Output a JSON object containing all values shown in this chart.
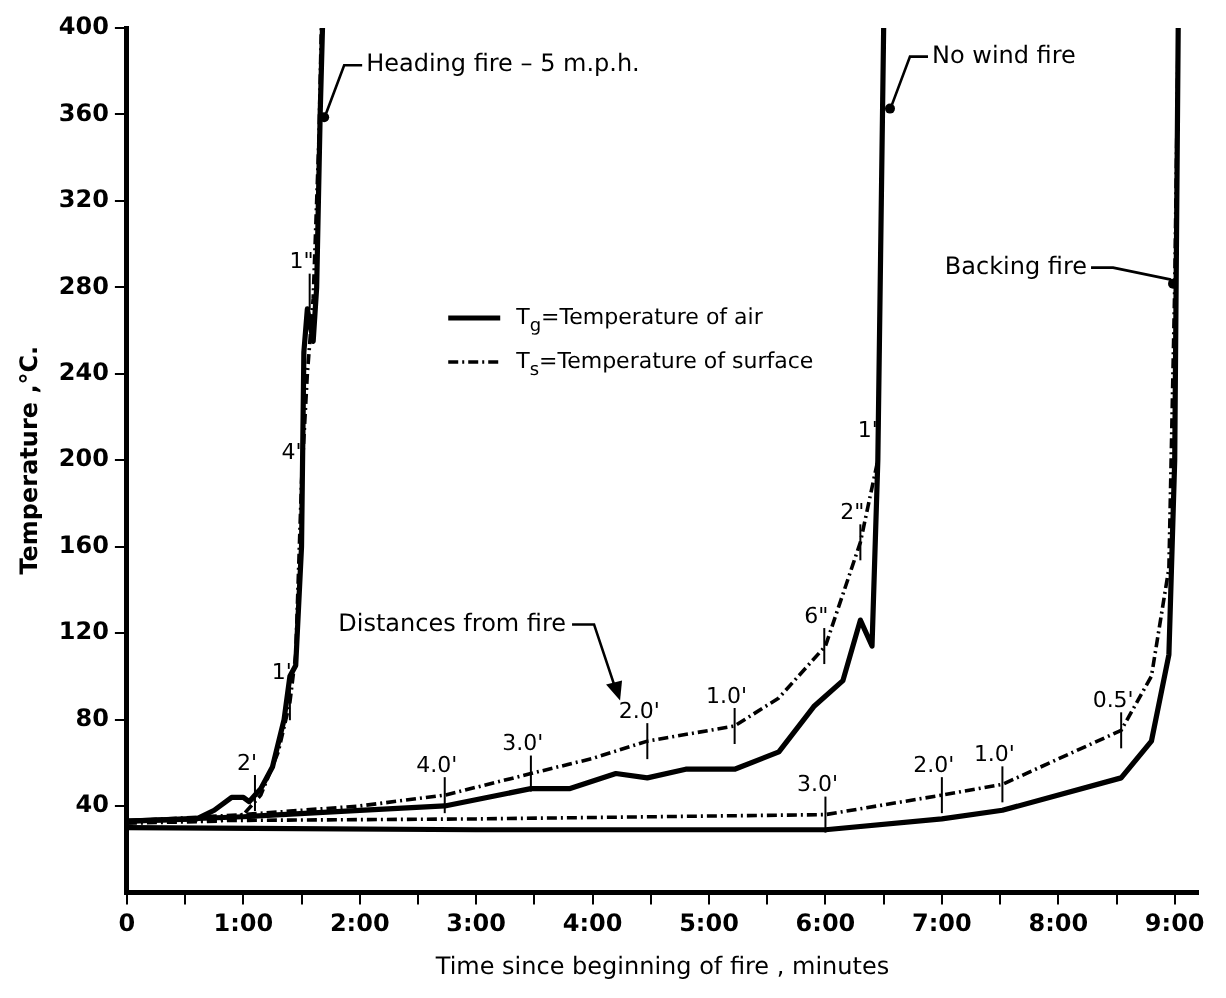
{
  "chart_data": {
    "type": "line",
    "xlabel": "Time since beginning of fire , minutes",
    "ylabel": "Temperature ,°C.",
    "xlim": [
      0,
      9.2
    ],
    "ylim": [
      0,
      400
    ],
    "xticks": [
      {
        "value": 0,
        "label": "0"
      },
      {
        "value": 0.5,
        "label": null
      },
      {
        "value": 1,
        "label": "1:00"
      },
      {
        "value": 1.5,
        "label": null
      },
      {
        "value": 2,
        "label": "2:00"
      },
      {
        "value": 2.5,
        "label": null
      },
      {
        "value": 3,
        "label": "3:00"
      },
      {
        "value": 3.5,
        "label": null
      },
      {
        "value": 4,
        "label": "4:00"
      },
      {
        "value": 4.5,
        "label": null
      },
      {
        "value": 5,
        "label": "5:00"
      },
      {
        "value": 5.5,
        "label": null
      },
      {
        "value": 6,
        "label": "6:00"
      },
      {
        "value": 6.5,
        "label": null
      },
      {
        "value": 7,
        "label": "7:00"
      },
      {
        "value": 7.5,
        "label": null
      },
      {
        "value": 8,
        "label": "8:00"
      },
      {
        "value": 8.5,
        "label": null
      },
      {
        "value": 9,
        "label": "9:00"
      }
    ],
    "yticks": [
      40,
      80,
      120,
      160,
      200,
      240,
      280,
      320,
      360,
      400
    ],
    "grid": false,
    "legend": "top",
    "marker": "none",
    "series": [
      {
        "name": "T$_{g}$=Temperature of air",
        "color": "#000000",
        "line_style": "solid",
        "x": [
          0,
          0.6,
          0.75,
          0.9,
          1.0,
          1.05,
          1.15,
          1.25,
          1.35,
          1.4,
          1.45,
          1.5,
          1.52,
          1.55,
          1.6,
          1.63,
          1.66,
          1.68
        ],
        "values": [
          33,
          34,
          38,
          44,
          44,
          42,
          48,
          58,
          80,
          100,
          105,
          160,
          250,
          270,
          255,
          280,
          360,
          400
        ]
      },
      {
        "name": "T$_{s}$=Temperature of surface",
        "color": "#000000",
        "line_style": "dashed",
        "x": [
          0,
          0.8,
          1.0,
          1.15,
          1.3,
          1.4,
          1.45,
          1.5,
          1.55,
          1.6,
          1.65,
          1.67
        ],
        "values": [
          32,
          33,
          36,
          45,
          65,
          88,
          110,
          190,
          240,
          275,
          350,
          400
        ]
      },
      {
        "color": "#000000",
        "line_style": "solid",
        "x": [
          0,
          1,
          2,
          2.73,
          3.47,
          3.8,
          4.2,
          4.47,
          4.8,
          5.22,
          5.6,
          5.9,
          6.15,
          6.3,
          6.4,
          6.45,
          6.5
        ],
        "values": [
          33,
          35,
          38,
          40,
          48,
          48,
          55,
          53,
          57,
          57,
          65,
          86,
          98,
          126,
          114,
          200,
          400
        ]
      },
      {
        "color": "#000000",
        "line_style": "dashed",
        "x": [
          0,
          1,
          2,
          2.73,
          3.47,
          4.0,
          4.47,
          5.22,
          5.6,
          6.0,
          6.3,
          6.45,
          6.5
        ],
        "values": [
          33,
          36,
          40,
          45,
          55,
          62,
          70,
          77,
          90,
          114,
          162,
          200,
          400
        ]
      },
      {
        "color": "#000000",
        "line_style": "solid",
        "x": [
          0,
          3,
          6.0,
          7.0,
          7.52,
          8.54,
          8.8,
          8.95,
          9.0,
          9.03
        ],
        "values": [
          30,
          29,
          29,
          34,
          38,
          53,
          70,
          110,
          200,
          400
        ]
      },
      {
        "color": "#000000",
        "line_style": "dashed",
        "x": [
          0,
          3,
          6.0,
          7.0,
          7.52,
          8.54,
          8.8,
          8.95,
          9.0,
          9.03
        ],
        "values": [
          33,
          34,
          36,
          45,
          50,
          75,
          100,
          150,
          280,
          400
        ]
      }
    ],
    "annotations": [
      {
        "text": "Heading fire – 5 m.p.h.",
        "x": 1.66,
        "y": 355
      },
      {
        "text": "No wind fire",
        "x": 6.52,
        "y": 359
      },
      {
        "text": "Backing fire",
        "x": 9.02,
        "y": 278
      },
      "Distances from fire",
      {
        "text": "2'",
        "x": 1.1,
        "y": 46
      },
      {
        "text": "1'",
        "x": 1.4,
        "y": 88
      },
      {
        "text": "4\"",
        "x": 1.5,
        "y": 190
      },
      {
        "text": "1\"",
        "x": 1.57,
        "y": 278
      },
      {
        "text": "4.0'",
        "x": 2.73,
        "y": 45
      },
      {
        "text": "3.0'",
        "x": 3.47,
        "y": 55
      },
      {
        "text": "2.0'",
        "x": 4.47,
        "y": 70
      },
      {
        "text": "1.0'",
        "x": 5.22,
        "y": 77
      },
      {
        "text": "6\"",
        "x": 5.99,
        "y": 114
      },
      {
        "text": "2\"",
        "x": 6.3,
        "y": 162
      },
      {
        "text": "1\"",
        "x": 6.45,
        "y": 200
      },
      {
        "text": "3.0'",
        "x": 6.0,
        "y": 36
      },
      {
        "text": "2.0'",
        "x": 7.0,
        "y": 45
      },
      {
        "text": "1.0'",
        "x": 7.52,
        "y": 50
      },
      {
        "text": "0.5'",
        "x": 8.54,
        "y": 75
      }
    ]
  }
}
